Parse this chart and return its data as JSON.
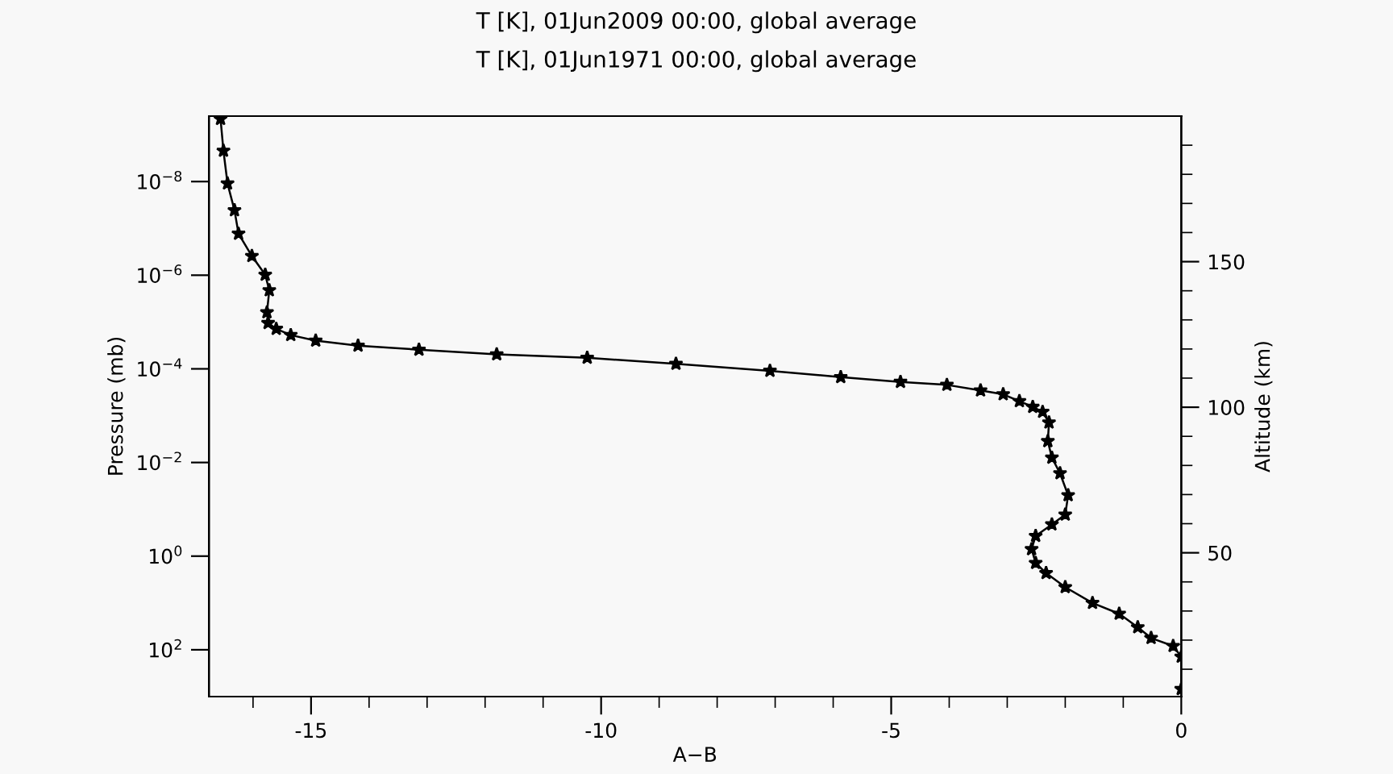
{
  "chart_data": {
    "type": "line",
    "title": "T [K], 01Jun2009 00:00, global average",
    "subtitle": "T [K], 01Jun1971 00:00, global average",
    "xlabel": "A−B",
    "ylabel": "Pressure (mb)",
    "y2label": "Altitude (km)",
    "log": "y",
    "marker": "star",
    "line_style": "solid",
    "grid": false,
    "xlim": [
      -16.76,
      0
    ],
    "xticks": [
      {
        "value": -16,
        "label": null
      },
      -15,
      {
        "value": -14,
        "label": null
      },
      {
        "value": -13,
        "label": null
      },
      {
        "value": -12,
        "label": null
      },
      {
        "value": -11,
        "label": null
      },
      -10,
      {
        "value": -9,
        "label": null
      },
      {
        "value": -8,
        "label": null
      },
      {
        "value": -7,
        "label": null
      },
      {
        "value": -6,
        "label": null
      },
      -5,
      {
        "value": -4,
        "label": null
      },
      {
        "value": -3,
        "label": null
      },
      {
        "value": -2,
        "label": null
      },
      {
        "value": -1,
        "label": null
      },
      0
    ],
    "ylim": [
      1000,
      4e-10
    ],
    "yticks": [
      {
        "value": 1e-08,
        "label": "10$^{−8}$"
      },
      {
        "value": 1e-06,
        "label": "10$^{−6}$"
      },
      {
        "value": 0.0001,
        "label": "10$^{−4}$"
      },
      {
        "value": 0.01,
        "label": "10$^{−2}$"
      },
      {
        "value": 1,
        "label": "10$^{0}$"
      },
      {
        "value": 100,
        "label": "10$^{2}$"
      }
    ],
    "y2lim": [
      0.6,
      200
    ],
    "y2ticks": [
      {
        "value": 10,
        "label": null
      },
      {
        "value": 20,
        "label": null
      },
      {
        "value": 30,
        "label": null
      },
      {
        "value": 40,
        "label": null
      },
      50,
      {
        "value": 60,
        "label": null
      },
      {
        "value": 70,
        "label": null
      },
      {
        "value": 80,
        "label": null
      },
      {
        "value": 90,
        "label": null
      },
      100,
      {
        "value": 110,
        "label": null
      },
      {
        "value": 120,
        "label": null
      },
      {
        "value": 130,
        "label": null
      },
      {
        "value": 140,
        "label": null
      },
      150,
      {
        "value": 160,
        "label": null
      },
      {
        "value": 170,
        "label": null
      },
      {
        "value": 180,
        "label": null
      },
      {
        "value": 190,
        "label": null
      }
    ],
    "series": [
      {
        "color": "#000000",
        "x": [
          -16.56,
          -16.51,
          -16.44,
          -16.32,
          -16.25,
          -16.02,
          -15.79,
          -15.72,
          -15.76,
          -15.74,
          -15.6,
          -15.35,
          -14.92,
          -14.19,
          -13.14,
          -11.8,
          -10.24,
          -8.71,
          -7.09,
          -5.87,
          -4.84,
          -4.04,
          -3.46,
          -3.07,
          -2.79,
          -2.56,
          -2.39,
          -2.28,
          -2.3,
          -2.23,
          -2.09,
          -1.95,
          -2.0,
          -2.23,
          -2.51,
          -2.58,
          -2.51,
          -2.33,
          -2.0,
          -1.53,
          -1.07,
          -0.75,
          -0.52,
          -0.14,
          0.0,
          0.0
        ],
        "values": [
          4.6e-10,
          2.2e-09,
          1.1e-08,
          4.1e-08,
          1.3e-07,
          3.9e-07,
          9.8e-07,
          2.1e-06,
          6.2e-06,
          1.05e-05,
          1.4e-05,
          1.9e-05,
          2.5e-05,
          3.2e-05,
          3.9e-05,
          4.9e-05,
          5.8e-05,
          7.8e-05,
          0.00011,
          0.00015,
          0.00019,
          0.00022,
          0.00029,
          0.00035,
          0.00049,
          0.00065,
          0.00083,
          0.0014,
          0.0035,
          0.0079,
          0.017,
          0.05,
          0.13,
          0.21,
          0.37,
          0.71,
          1.4,
          2.3,
          4.6,
          10,
          17,
          33,
          56,
          83,
          141,
          690
        ]
      }
    ]
  }
}
